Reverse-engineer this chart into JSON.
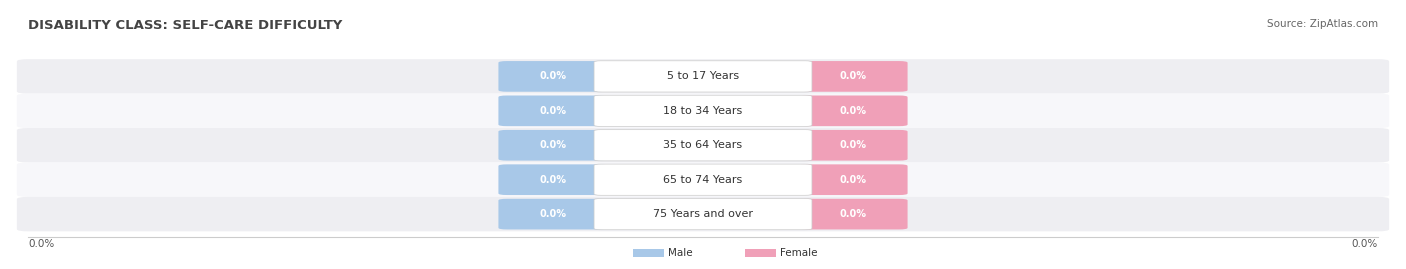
{
  "title": "DISABILITY CLASS: SELF-CARE DIFFICULTY",
  "source_text": "Source: ZipAtlas.com",
  "categories": [
    "5 to 17 Years",
    "18 to 34 Years",
    "35 to 64 Years",
    "65 to 74 Years",
    "75 Years and over"
  ],
  "male_values": [
    0.0,
    0.0,
    0.0,
    0.0,
    0.0
  ],
  "female_values": [
    0.0,
    0.0,
    0.0,
    0.0,
    0.0
  ],
  "male_color": "#a8c8e8",
  "female_color": "#f0a0b8",
  "male_label": "Male",
  "female_label": "Female",
  "row_bg_color_odd": "#eeeef2",
  "row_bg_color_even": "#f7f7fa",
  "title_fontsize": 9.5,
  "source_fontsize": 7.5,
  "value_label_fontsize": 7.0,
  "category_fontsize": 8.0,
  "axis_label_fontsize": 7.5,
  "background_color": "#ffffff",
  "left_label": "0.0%",
  "right_label": "0.0%"
}
